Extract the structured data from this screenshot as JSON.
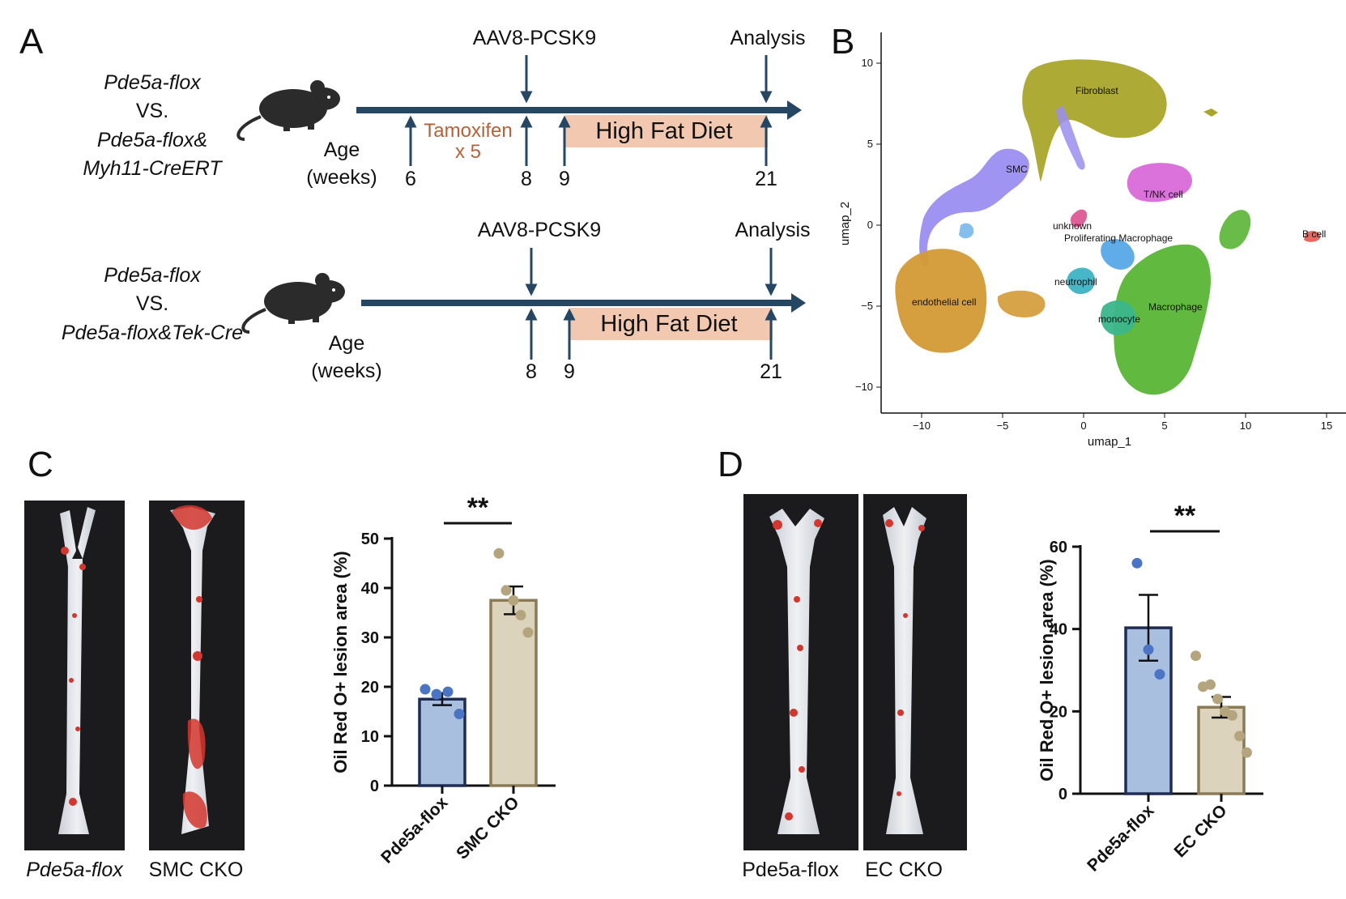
{
  "panels": {
    "A": "A",
    "B": "B",
    "C": "C",
    "D": "D"
  },
  "timelines": [
    {
      "group_label_1": "Pde5a-flox",
      "vs": "VS.",
      "group_label_2a": "Pde5a-flox&",
      "group_label_2b": "Myh11-CreERT",
      "age_label_1": "Age",
      "age_label_2": "(weeks)",
      "injection": "AAV8-PCSK9",
      "analysis": "Analysis",
      "tamoxifen_1": "Tamoxifen",
      "tamoxifen_2": "x 5",
      "diet": "High Fat Diet",
      "weeks": [
        "6",
        "8",
        "9",
        "21"
      ]
    },
    {
      "group_label_1": "Pde5a-flox",
      "vs": "VS.",
      "group_label_2": "Pde5a-flox&Tek-Cre",
      "age_label_1": "Age",
      "age_label_2": "(weeks)",
      "injection": "AAV8-PCSK9",
      "analysis": "Analysis",
      "diet": "High Fat Diet",
      "weeks": [
        "8",
        "9",
        "21"
      ]
    }
  ],
  "umap": {
    "xlabel": "umap_1",
    "ylabel": "umap_2",
    "xticks": [
      "−10",
      "−5",
      "0",
      "5",
      "10",
      "15"
    ],
    "yticks": [
      "10",
      "5",
      "0",
      "−5",
      "−10"
    ],
    "clusters": [
      {
        "name": "Fibroblast",
        "color": "#a9a52a"
      },
      {
        "name": "SMC",
        "color": "#9a8ef0"
      },
      {
        "name": "T/NK cell",
        "color": "#d96ad9"
      },
      {
        "name": "unknown",
        "color": "#e0609a"
      },
      {
        "name": "Proliferating Macrophage",
        "color": "#4fa3e6"
      },
      {
        "name": "B cell",
        "color": "#e8685f"
      },
      {
        "name": "neutrophil",
        "color": "#3db3c4"
      },
      {
        "name": "endothelial cell",
        "color": "#d39a35"
      },
      {
        "name": "Macrophage",
        "color": "#5ab535"
      },
      {
        "name": "monocyte",
        "color": "#3bb58c"
      }
    ]
  },
  "chart_data": [
    {
      "type": "bar",
      "panel": "C",
      "categories": [
        "Pde5a-flox",
        "SMC CKO"
      ],
      "values": [
        17.5,
        37.5
      ],
      "sem": [
        1.2,
        2.8
      ],
      "points": [
        [
          19.5,
          18.5,
          19,
          14.5
        ],
        [
          47,
          39.5,
          37.5,
          34.5,
          31
        ]
      ],
      "colors": [
        "#a8bfe0",
        "#dcd3bd"
      ],
      "edge_colors": [
        "#1f2c54",
        "#8a7b56"
      ],
      "point_colors": [
        "#4a74c4",
        "#b4a57f"
      ],
      "ylabel": "Oil Red O+ lesion area (%)",
      "yticks": [
        "0",
        "10",
        "20",
        "30",
        "40",
        "50"
      ],
      "ylim": [
        0,
        50
      ],
      "significance": "**"
    },
    {
      "type": "bar",
      "panel": "D",
      "categories": [
        "Pde5a-flox",
        "EC CKO"
      ],
      "values": [
        40.3,
        21
      ],
      "sem": [
        8,
        2.5
      ],
      "points": [
        [
          56,
          35,
          29
        ],
        [
          33.5,
          26,
          26.5,
          23,
          20,
          19,
          14,
          10
        ]
      ],
      "colors": [
        "#a8bfe0",
        "#dcd3bd"
      ],
      "edge_colors": [
        "#1f2c54",
        "#8a7b56"
      ],
      "point_colors": [
        "#4a74c4",
        "#b4a57f"
      ],
      "ylabel": "Oil Red O+ lesion area (%)",
      "yticks": [
        "0",
        "20",
        "40",
        "60"
      ],
      "ylim": [
        0,
        60
      ],
      "significance": "**"
    }
  ],
  "photos": {
    "c_left": "Pde5a-flox",
    "c_right": "SMC CKO",
    "d_left": "Pde5a-flox",
    "d_right": "EC CKO"
  }
}
